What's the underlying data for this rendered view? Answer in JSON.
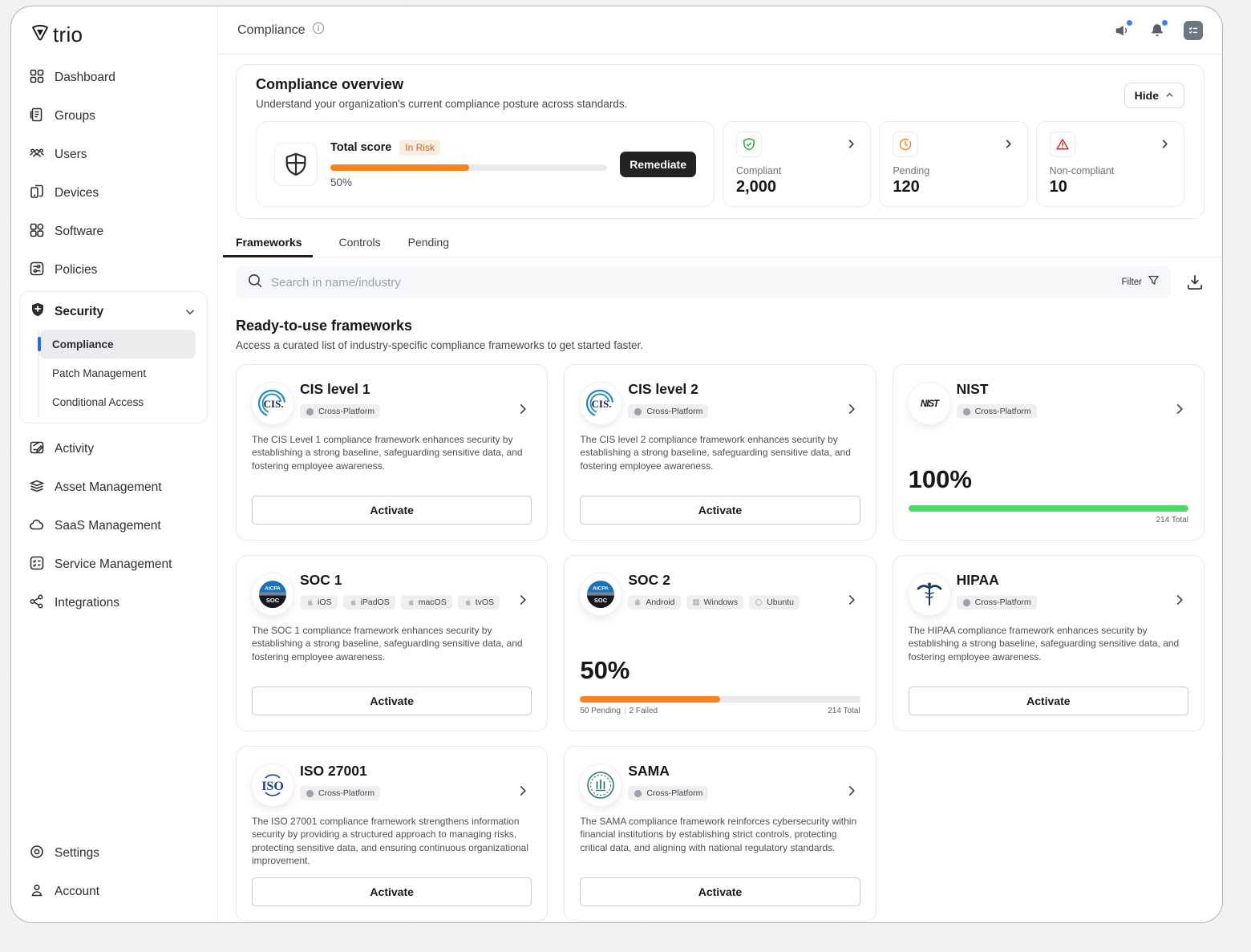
{
  "brand": {
    "name": "trio"
  },
  "sidebar": {
    "items_top": [
      {
        "label": "Dashboard"
      },
      {
        "label": "Groups"
      },
      {
        "label": "Users"
      },
      {
        "label": "Devices"
      },
      {
        "label": "Software"
      },
      {
        "label": "Policies"
      }
    ],
    "security": {
      "label": "Security",
      "items": [
        {
          "label": "Compliance"
        },
        {
          "label": "Patch Management"
        },
        {
          "label": "Conditional Access"
        }
      ],
      "active_item": "Compliance"
    },
    "items_mid": [
      {
        "label": "Activity"
      },
      {
        "label": "Asset Management"
      },
      {
        "label": "SaaS Management"
      },
      {
        "label": "Service Management"
      },
      {
        "label": "Integrations"
      }
    ],
    "items_bottom": [
      {
        "label": "Settings"
      },
      {
        "label": "Account"
      }
    ]
  },
  "topbar": {
    "title": "Compliance"
  },
  "overview": {
    "title": "Compliance overview",
    "subtitle": "Understand your organization's current compliance posture across standards.",
    "hide_label": "Hide",
    "score": {
      "label": "Total score",
      "status_badge": "In Risk",
      "percent": 50,
      "percent_label": "50%",
      "remediate_label": "Remediate",
      "bar_color": "#f8821c",
      "badge_bg": "#fbeee1",
      "badge_text_color": "#c3682f"
    },
    "stats": [
      {
        "label": "Compliant",
        "value": "2,000",
        "icon": "shield-check-icon",
        "color": "#22a93f"
      },
      {
        "label": "Pending",
        "value": "120",
        "icon": "clock-icon",
        "color": "#f8821c"
      },
      {
        "label": "Non-compliant",
        "value": "10",
        "icon": "alert-triangle-icon",
        "color": "#dc2626"
      }
    ]
  },
  "tabs": {
    "items": [
      {
        "label": "Frameworks"
      },
      {
        "label": "Controls"
      },
      {
        "label": "Pending"
      }
    ],
    "active": "Frameworks"
  },
  "search": {
    "placeholder": "Search in name/industry",
    "filter_label": "Filter"
  },
  "frameworks_section": {
    "title": "Ready-to-use frameworks",
    "subtitle": "Access a curated list of industry-specific compliance frameworks to get started faster."
  },
  "frameworks": [
    {
      "name": "CIS level 1",
      "logo": "cis-logo",
      "platforms": [
        {
          "label": "Cross-Platform",
          "icon": "globe-icon"
        }
      ],
      "description": "The CIS Level 1 compliance framework enhances security by establishing a strong baseline, safeguarding sensitive data, and fostering employee awareness.",
      "action_label": "Activate"
    },
    {
      "name": "CIS level 2",
      "logo": "cis-logo",
      "platforms": [
        {
          "label": "Cross-Platform",
          "icon": "globe-icon"
        }
      ],
      "description": "The CIS level 2 compliance framework enhances security by establishing a strong baseline, safeguarding sensitive data, and fostering employee awareness.",
      "action_label": "Activate"
    },
    {
      "name": "NIST",
      "logo": "nist-logo",
      "platforms": [
        {
          "label": "Cross-Platform",
          "icon": "globe-icon"
        }
      ],
      "progress": {
        "percent": 100,
        "percent_label": "100%",
        "color": "#4cd964",
        "total_label": "214 Total"
      }
    },
    {
      "name": "SOC 1",
      "logo": "aicpa-soc-logo",
      "platforms": [
        {
          "label": "iOS",
          "icon": "apple-icon"
        },
        {
          "label": "iPadOS",
          "icon": "apple-icon"
        },
        {
          "label": "macOS",
          "icon": "apple-icon"
        },
        {
          "label": "tvOS",
          "icon": "apple-icon"
        }
      ],
      "description": "The SOC 1 compliance framework enhances security by establishing a strong baseline, safeguarding sensitive data, and fostering employee awareness.",
      "action_label": "Activate"
    },
    {
      "name": "SOC 2",
      "logo": "aicpa-soc-logo",
      "platforms": [
        {
          "label": "Android",
          "icon": "android-icon"
        },
        {
          "label": "Windows",
          "icon": "windows-icon"
        },
        {
          "label": "Ubuntu",
          "icon": "ubuntu-icon"
        }
      ],
      "progress": {
        "percent": 50,
        "percent_label": "50%",
        "color": "#f8821c",
        "pending_label": "50 Pending",
        "failed_label": "2 Failed",
        "total_label": "214 Total"
      }
    },
    {
      "name": "HIPAA",
      "logo": "hipaa-caduceus-logo",
      "platforms": [
        {
          "label": "Cross-Platform",
          "icon": "globe-icon"
        }
      ],
      "description": "The HIPAA compliance framework enhances security by establishing a strong baseline, safeguarding sensitive data, and fostering employee awareness.",
      "action_label": "Activate"
    },
    {
      "name": "ISO 27001",
      "logo": "iso-logo",
      "platforms": [
        {
          "label": "Cross-Platform",
          "icon": "globe-icon"
        }
      ],
      "description": "The ISO 27001 compliance framework strengthens information security by providing a structured approach to managing risks, protecting sensitive data, and ensuring continuous organizational improvement.",
      "action_label": "Activate"
    },
    {
      "name": "SAMA",
      "logo": "sama-logo",
      "platforms": [
        {
          "label": "Cross-Platform",
          "icon": "globe-icon"
        }
      ],
      "description": "The SAMA compliance framework reinforces cybersecurity within financial institutions by establishing strict controls, protecting critical data, and aligning with national regulatory standards.",
      "action_label": "Activate"
    }
  ]
}
